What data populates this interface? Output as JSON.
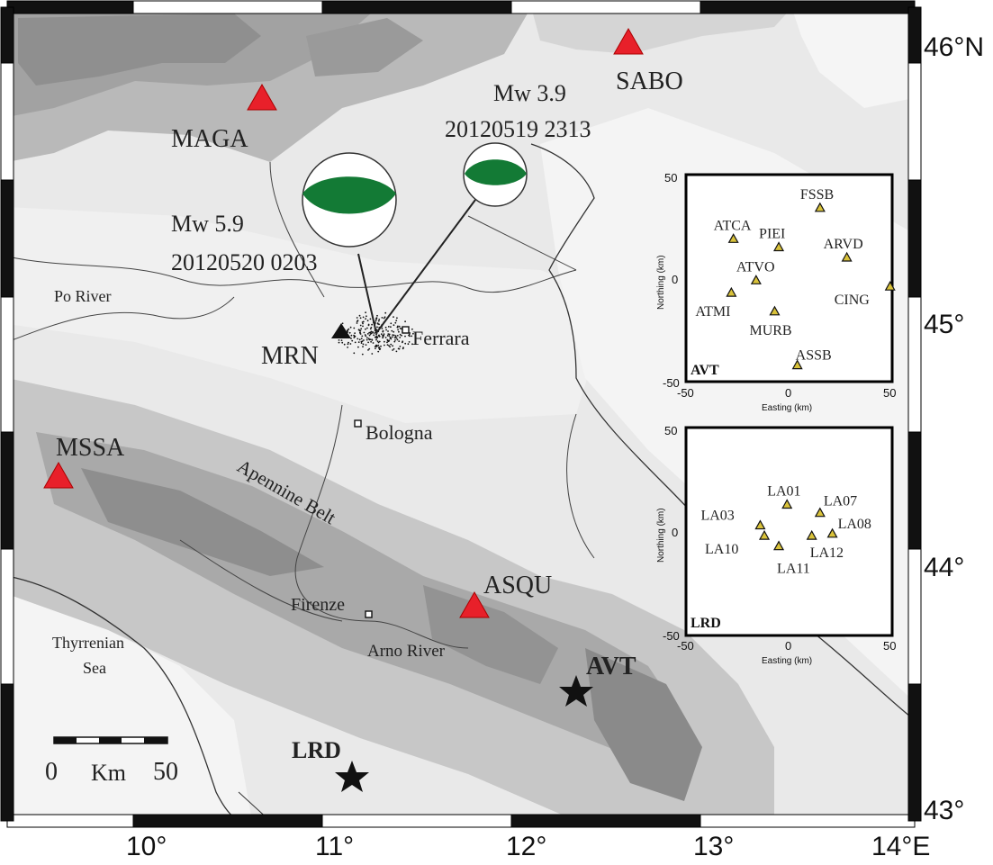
{
  "map": {
    "lat_labels": [
      "46°N",
      "45°",
      "44°",
      "43°"
    ],
    "lon_labels": [
      "10°",
      "11°",
      "12°",
      "13°",
      "14°E"
    ],
    "stations": [
      "SABO",
      "MAGA",
      "MSSA",
      "ASQU",
      "MRN"
    ],
    "sites": [
      "AVT",
      "LRD"
    ],
    "cities": [
      "Ferrara",
      "Bologna",
      "Firenze"
    ],
    "features": {
      "po_river": "Po River",
      "apennine": "Apennine Belt",
      "arno": "Arno River",
      "sea_line1": "Thyrrenian",
      "sea_line2": "Sea"
    },
    "events": [
      {
        "mw": "Mw 5.9",
        "datetime": "20120520 0203"
      },
      {
        "mw": "Mw 3.9",
        "datetime": "20120519 2313"
      }
    ],
    "scale": {
      "min": "0",
      "max": "50",
      "unit": "Km"
    },
    "colors": {
      "station": "#e8202a",
      "beachball": "#137a35",
      "site": "#111111"
    }
  },
  "insets": {
    "avt": {
      "name": "AVT",
      "stations": [
        {
          "code": "ATCA",
          "e": -27,
          "n": 19
        },
        {
          "code": "FSSB",
          "e": 15,
          "n": 34
        },
        {
          "code": "PIEI",
          "e": -5,
          "n": 15
        },
        {
          "code": "ARVD",
          "e": 28,
          "n": 10
        },
        {
          "code": "ATVO",
          "e": -16,
          "n": -1
        },
        {
          "code": "ATMI",
          "e": -28,
          "n": -7
        },
        {
          "code": "CING",
          "e": 49,
          "n": -4
        },
        {
          "code": "MURB",
          "e": -7,
          "n": -16
        },
        {
          "code": "ASSB",
          "e": 4,
          "n": -42
        }
      ]
    },
    "lrd": {
      "name": "LRD",
      "stations": [
        {
          "code": "LA01",
          "e": -1,
          "n": 13
        },
        {
          "code": "LA07",
          "e": 15,
          "n": 9
        },
        {
          "code": "LA03",
          "e": -14,
          "n": 3
        },
        {
          "code": "LA08",
          "e": 21,
          "n": -1
        },
        {
          "code": "LA10",
          "e": -12,
          "n": -2
        },
        {
          "code": "LA12",
          "e": 11,
          "n": -2
        },
        {
          "code": "LA11",
          "e": -5,
          "n": -7
        }
      ]
    },
    "xlabel": "Easting (km)",
    "ylabel": "Northing (km)",
    "ticks": {
      "x": [
        "-50",
        "0",
        "50"
      ],
      "y": [
        "50",
        "0",
        "-50"
      ]
    },
    "range": [
      -50,
      50
    ]
  }
}
